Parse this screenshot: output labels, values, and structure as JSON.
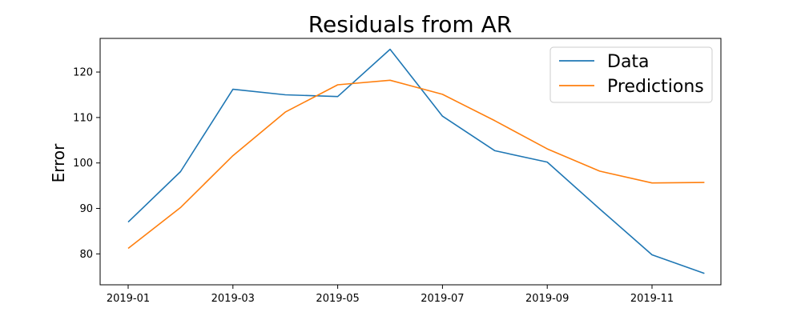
{
  "chart_data": {
    "type": "line",
    "title": "Residuals from AR",
    "xlabel": "",
    "ylabel": "Error",
    "x": [
      "2019-01",
      "2019-02",
      "2019-03",
      "2019-04",
      "2019-05",
      "2019-06",
      "2019-07",
      "2019-08",
      "2019-09",
      "2019-10",
      "2019-11",
      "2019-12"
    ],
    "xticks": [
      "2019-01",
      "2019-03",
      "2019-05",
      "2019-07",
      "2019-09",
      "2019-11"
    ],
    "yticks": [
      80,
      90,
      100,
      110,
      120
    ],
    "ylim": [
      73.2,
      127.4
    ],
    "grid": false,
    "legend_position": "top-right",
    "series": [
      {
        "name": "Data",
        "color": "#1f77b4",
        "values": [
          87.0,
          98.1,
          116.2,
          115.0,
          114.6,
          125.0,
          110.3,
          102.7,
          100.2,
          89.9,
          79.8,
          75.7
        ]
      },
      {
        "name": "Predictions",
        "color": "#ff7f0e",
        "values": [
          81.2,
          90.2,
          101.6,
          111.2,
          117.2,
          118.2,
          115.1,
          109.3,
          103.1,
          98.2,
          95.6,
          95.7
        ]
      }
    ]
  }
}
